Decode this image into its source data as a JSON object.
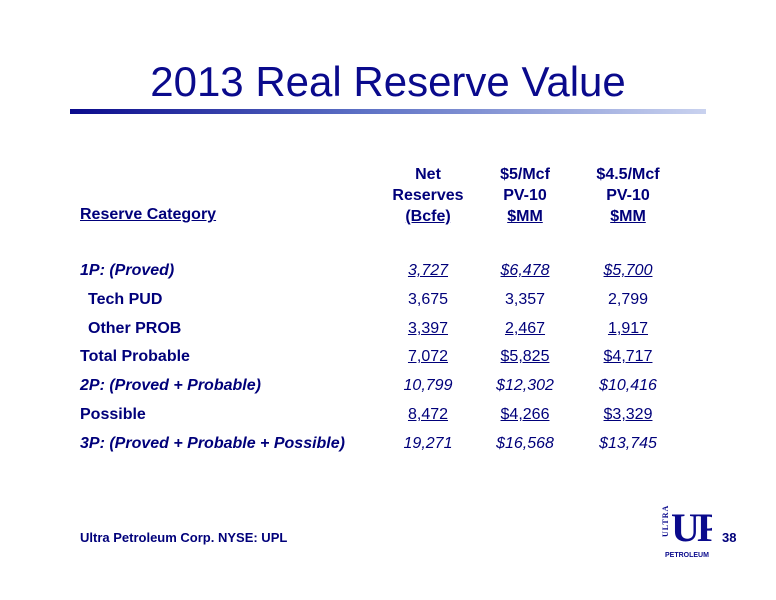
{
  "title": "2013 Real Reserve Value",
  "columns": [
    {
      "lines": [
        "Net",
        "Reserves",
        "(Bcfe)"
      ]
    },
    {
      "lines": [
        "$5/Mcf",
        "PV-10",
        "$MM"
      ]
    },
    {
      "lines": [
        "$4.5/Mcf",
        "PV-10",
        "$MM"
      ]
    }
  ],
  "category_header": "Reserve Category",
  "rows": [
    {
      "label": "1P: (Proved)",
      "values": [
        "3,727",
        "$6,478",
        "$5,700"
      ]
    },
    {
      "label": "Tech PUD",
      "values": [
        "3,675",
        "3,357",
        "2,799"
      ]
    },
    {
      "label": "Other PROB",
      "values": [
        "3,397",
        "2,467",
        "1,917"
      ]
    },
    {
      "label": "Total Probable",
      "values": [
        "7,072",
        "$5,825",
        "$4,717"
      ]
    },
    {
      "label": "2P:  (Proved + Probable)",
      "values": [
        "10,799",
        "$12,302",
        "$10,416"
      ]
    },
    {
      "label": "Possible",
      "values": [
        "8,472",
        "$4,266",
        "$3,329"
      ]
    },
    {
      "label": "3P:  (Proved + Probable + Possible)",
      "values": [
        "19,271",
        "$16,568",
        "$13,745"
      ]
    }
  ],
  "footer": "Ultra Petroleum Corp. NYSE: UPL",
  "page_number": "38",
  "logo": {
    "letters": "UP",
    "side_text": "ULTRA",
    "bottom_text": "PETROLEUM"
  }
}
